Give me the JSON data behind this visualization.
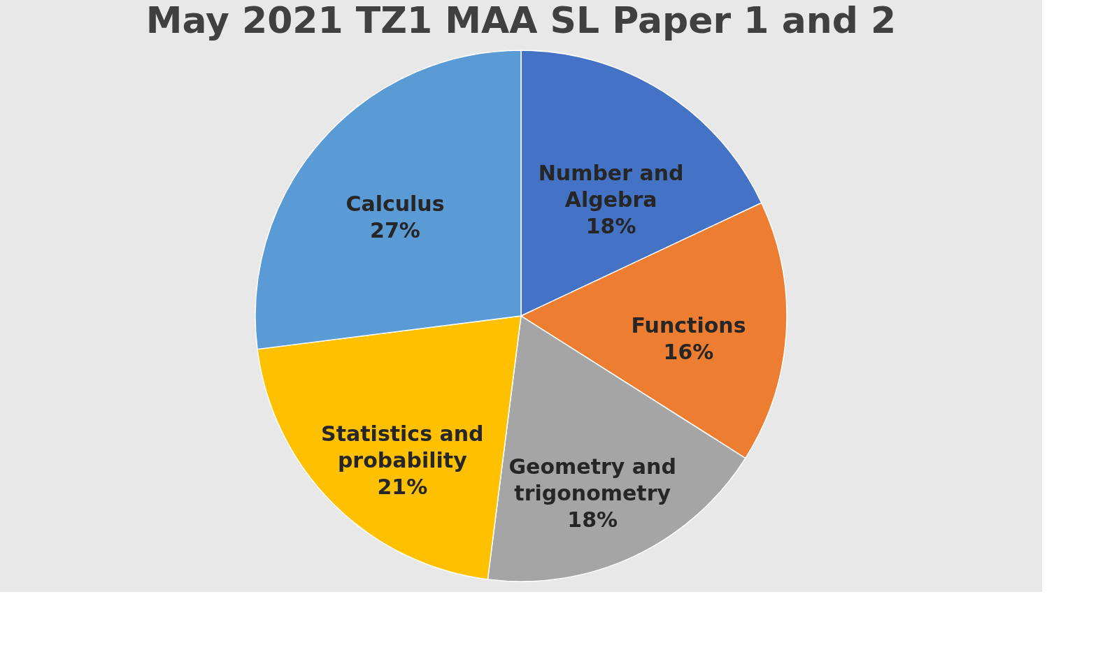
{
  "chart_data": {
    "type": "pie",
    "title": "May 2021 TZ1 MAA SL Paper 1 and 2",
    "categories": [
      "Number and Algebra",
      "Functions",
      "Geometry and trigonometry",
      "Statistics and probability",
      "Calculus"
    ],
    "values": [
      18,
      16,
      18,
      21,
      27
    ],
    "colors": [
      "#4472c4",
      "#ed7d31",
      "#a5a5a5",
      "#ffc000",
      "#5b9bd5"
    ],
    "value_labels": [
      "18%",
      "16%",
      "18%",
      "21%",
      "27%"
    ],
    "legend": false
  }
}
